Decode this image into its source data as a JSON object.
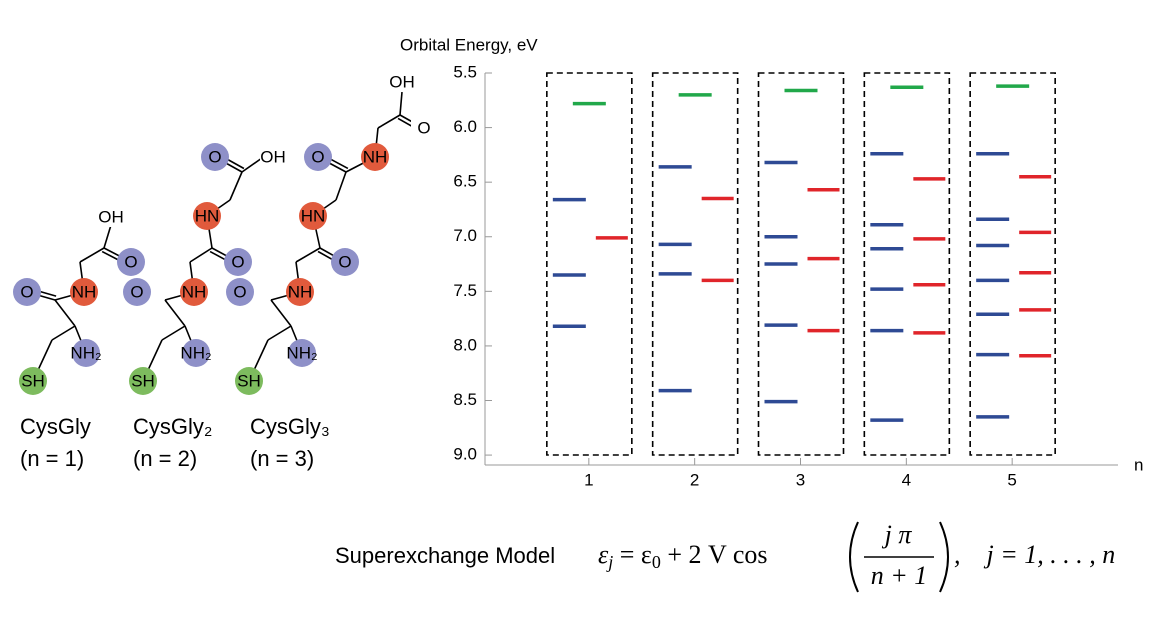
{
  "chart_data": {
    "type": "levels",
    "y_label": "Orbital Energy, eV",
    "x_label": "n",
    "xlim": [
      0,
      6
    ],
    "xticks": [
      1,
      2,
      3,
      4,
      5
    ],
    "ylim": [
      5.5,
      9.1
    ],
    "y_inverted": true,
    "yticks": [
      5.5,
      {
        "value": 6,
        "label": "6.0"
      },
      6.5,
      {
        "value": 7,
        "label": "7.0"
      },
      7.5,
      {
        "value": 8,
        "label": "8.0"
      },
      8.5,
      {
        "value": 9,
        "label": "9.0"
      }
    ],
    "series": [
      {
        "color": "#2e4a94",
        "x": [
          1,
          1,
          1,
          2,
          2,
          2,
          2,
          3,
          3,
          3,
          3,
          3,
          4,
          4,
          4,
          4,
          4,
          4,
          5,
          5,
          5,
          5,
          5,
          5,
          5
        ],
        "values": [
          6.66,
          7.35,
          7.82,
          6.36,
          7.07,
          7.34,
          8.41,
          6.32,
          7.0,
          7.25,
          7.81,
          8.51,
          6.24,
          6.89,
          7.11,
          7.48,
          7.86,
          8.68,
          6.24,
          6.84,
          7.08,
          7.4,
          7.71,
          8.08,
          8.65
        ]
      },
      {
        "color": "#e0252a",
        "x": [
          1,
          2,
          2,
          3,
          3,
          3,
          4,
          4,
          4,
          4,
          5,
          5,
          5,
          5,
          5
        ],
        "values": [
          7.01,
          6.65,
          7.4,
          6.57,
          7.2,
          7.86,
          6.47,
          7.02,
          7.44,
          7.88,
          6.45,
          6.96,
          7.33,
          7.67,
          8.09
        ]
      },
      {
        "color": "#21a84a",
        "x": [
          1,
          2,
          3,
          4,
          5
        ],
        "values": [
          5.78,
          5.7,
          5.66,
          5.63,
          5.62
        ]
      }
    ]
  },
  "structures": [
    {
      "atoms": [
        "SH",
        "NH₂",
        "O",
        "NH",
        "O",
        "OH"
      ],
      "name": "CysGly",
      "n": "(n = 1)"
    },
    {
      "atoms": [
        "SH",
        "NH₂",
        "O",
        "NH",
        "O",
        "HN",
        "O",
        "OH"
      ],
      "name": "CysGly₂",
      "n": "(n = 2)"
    },
    {
      "atoms": [
        "SH",
        "NH₂",
        "O",
        "NH",
        "O",
        "HN",
        "O",
        "NH",
        "O",
        "OH"
      ],
      "name": "CysGly₃",
      "n": "(n = 3)"
    }
  ],
  "model": {
    "label": "Superexchange Model",
    "lhs": "ε",
    "lhs_sub": "j",
    "eq": " = ε",
    "eq_sub": "0",
    "rhs": " + 2 V cos",
    "num": "j π",
    "den": "n + 1",
    "tail": ",    j = 1, . . . , n"
  }
}
